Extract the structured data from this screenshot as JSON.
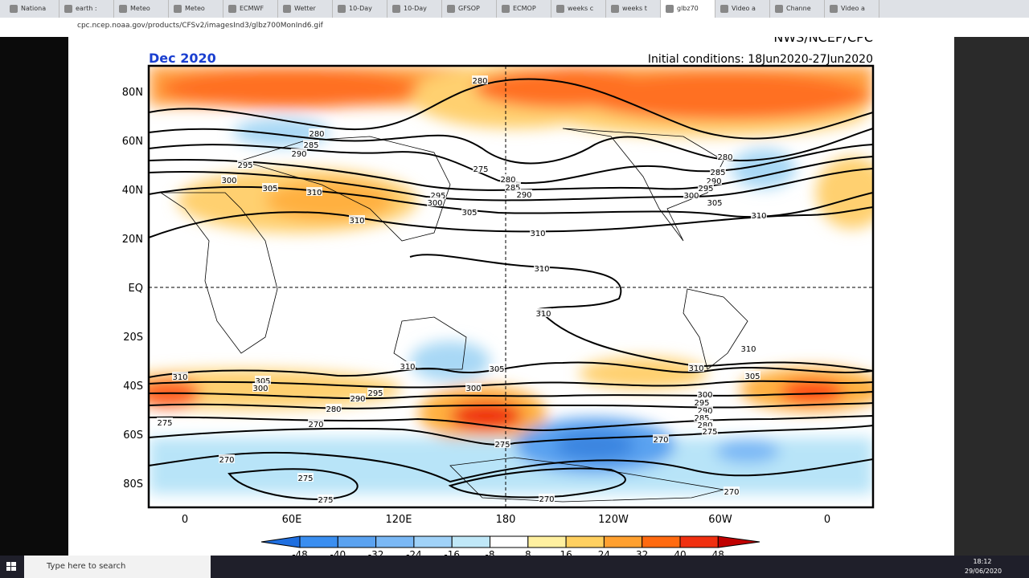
{
  "browser": {
    "tabs": [
      "Nationa",
      "earth :",
      "Meteo",
      "Meteo",
      "ECMWF",
      "Wetter",
      "10-Day",
      "10-Day",
      "GFSOP",
      "ECMOP",
      "weeks c",
      "weeks t",
      "glbz70",
      "Video a",
      "Channe",
      "Video a"
    ],
    "url": "cpc.ncep.noaa.gov/products/CFSv2/imagesInd3/glbz700MonInd6.gif"
  },
  "map": {
    "agency": "NWS/NCEP/CPC",
    "month": "Dec 2020",
    "initial_conditions": "Initial conditions: 18Jun2020-27Jun2020",
    "lat_labels": [
      "80N",
      "60N",
      "40N",
      "20N",
      "EQ",
      "20S",
      "40S",
      "60S",
      "80S"
    ],
    "lon_labels": [
      "0",
      "60E",
      "120E",
      "180",
      "120W",
      "60W",
      "0"
    ],
    "contour_labels": [
      "280",
      "280",
      "285",
      "290",
      "295",
      "300",
      "305",
      "310",
      "310",
      "295",
      "300",
      "305",
      "310",
      "275",
      "280",
      "285",
      "290",
      "300",
      "305",
      "310",
      "280",
      "285",
      "290",
      "295",
      "310",
      "310",
      "310",
      "310",
      "305",
      "310",
      "305",
      "300",
      "295",
      "290",
      "280",
      "275",
      "270",
      "310",
      "305",
      "300",
      "275",
      "270",
      "270",
      "275",
      "275",
      "270",
      "270",
      "300",
      "295",
      "290",
      "285",
      "280",
      "275"
    ],
    "colorbar_labels": [
      "-48",
      "-40",
      "-32",
      "-24",
      "-16",
      "-8",
      "8",
      "16",
      "24",
      "32",
      "40",
      "48"
    ]
  },
  "taskbar": {
    "search": "Type here to search",
    "time": "18:12",
    "date": "29/06/2020"
  }
}
